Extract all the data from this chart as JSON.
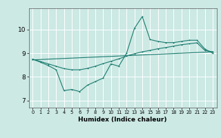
{
  "xlabel": "Humidex (Indice chaleur)",
  "xlim": [
    -0.5,
    23.5
  ],
  "ylim": [
    6.7,
    10.9
  ],
  "yticks": [
    7,
    8,
    9,
    10
  ],
  "xticks": [
    0,
    1,
    2,
    3,
    4,
    5,
    6,
    7,
    8,
    9,
    10,
    11,
    12,
    13,
    14,
    15,
    16,
    17,
    18,
    19,
    20,
    21,
    22,
    23
  ],
  "bg_color": "#cce9e4",
  "grid_color": "#ffffff",
  "line_color": "#1a7a6e",
  "line1_x": [
    0,
    1,
    2,
    3,
    4,
    5,
    6,
    7,
    8,
    9,
    10,
    11,
    12,
    13,
    14,
    15,
    16,
    17,
    18,
    19,
    20,
    21,
    22,
    23
  ],
  "line1_y": [
    8.75,
    8.62,
    8.48,
    8.3,
    7.42,
    7.47,
    7.38,
    7.65,
    7.8,
    7.95,
    8.55,
    8.45,
    9.0,
    10.05,
    10.55,
    9.58,
    9.5,
    9.45,
    9.45,
    9.5,
    9.55,
    9.55,
    9.18,
    9.0
  ],
  "line2_x": [
    0,
    1,
    2,
    3,
    4,
    5,
    6,
    7,
    8,
    9,
    10,
    11,
    12,
    13,
    14,
    15,
    16,
    17,
    18,
    19,
    20,
    21,
    22,
    23
  ],
  "line2_y": [
    8.75,
    8.65,
    8.55,
    8.45,
    8.35,
    8.3,
    8.3,
    8.36,
    8.45,
    8.56,
    8.66,
    8.76,
    8.88,
    8.98,
    9.06,
    9.12,
    9.19,
    9.24,
    9.3,
    9.36,
    9.4,
    9.44,
    9.12,
    9.06
  ],
  "line3_x": [
    0,
    23
  ],
  "line3_y": [
    8.72,
    9.06
  ]
}
